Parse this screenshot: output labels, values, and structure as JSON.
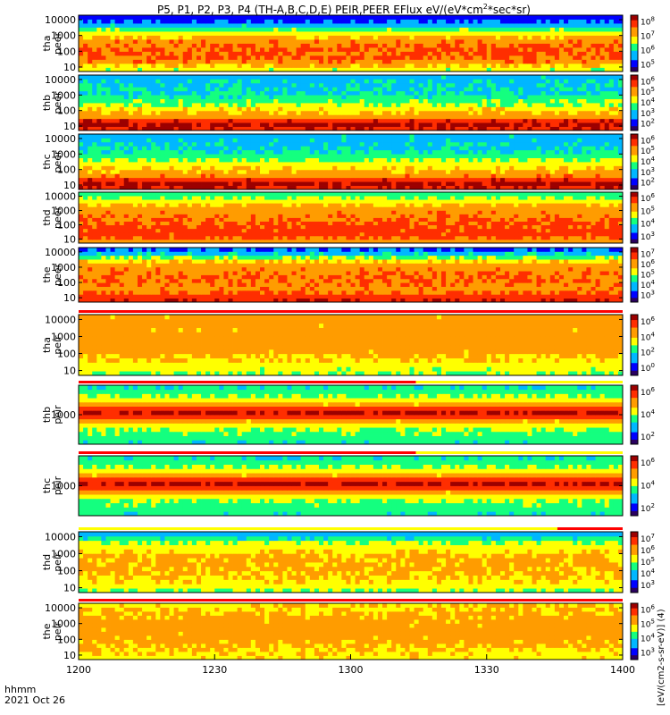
{
  "title": "P5, P1, P2, P3, P4 (TH-A,B,C,D,E) PEIR,PEER EFlux eV/(eV*cm",
  "title_sup": "2",
  "title_end": "*sec*sr)",
  "colorbar_label": "[eV/(cm2-s-sr-eV)] (4)",
  "time_axis": {
    "label_top": "hhmm",
    "label_bottom": "2021 Oct 26",
    "ticks": [
      "1200",
      "1230",
      "1300",
      "1330",
      "1400"
    ]
  },
  "palette": [
    "#2a0060",
    "#0000ff",
    "#00b7ff",
    "#14ff7f",
    "#ffff00",
    "#ff9c00",
    "#ff2e00",
    "#9c0000"
  ],
  "chart_data": [
    {
      "type": "heatmap",
      "panel": "tha-peer",
      "ylabel_line1": "tha",
      "ylabel_line2": "peer",
      "y_ticks": [
        "10",
        "100",
        "1000",
        "10000"
      ],
      "cb_labels": [
        "10^5",
        "10^6",
        "10^7",
        "10^8"
      ],
      "profile": [
        0.55,
        0.65,
        0.75,
        0.8,
        0.8,
        0.8,
        0.78,
        0.74,
        0.68,
        0.58,
        0.45,
        0.3,
        0.2,
        0.15
      ],
      "gaps": [],
      "flags": []
    },
    {
      "type": "heatmap",
      "panel": "thb-peer",
      "ylabel_line1": "thb",
      "ylabel_line2": "peer",
      "y_ticks": [
        "10",
        "100",
        "1000",
        "10000"
      ],
      "cb_labels": [
        "10^2",
        "10^3",
        "10^4",
        "10^5",
        "10^6"
      ],
      "profile": [
        0.92,
        0.96,
        0.88,
        0.72,
        0.66,
        0.6,
        0.52,
        0.46,
        0.4,
        0.35,
        0.34,
        0.33,
        0.32,
        0.3
      ],
      "gaps": [],
      "flags": []
    },
    {
      "type": "heatmap",
      "panel": "thc-peer",
      "ylabel_line1": "thc",
      "ylabel_line2": "peer",
      "y_ticks": [
        "10",
        "100",
        "1000",
        "10000"
      ],
      "cb_labels": [
        "10^2",
        "10^3",
        "10^4",
        "10^5",
        "10^6"
      ],
      "profile": [
        0.92,
        0.96,
        0.88,
        0.74,
        0.68,
        0.62,
        0.56,
        0.5,
        0.44,
        0.38,
        0.34,
        0.32,
        0.31,
        0.3
      ],
      "gaps": [],
      "flags": []
    },
    {
      "type": "heatmap",
      "panel": "thd-peer",
      "ylabel_line1": "thd",
      "ylabel_line2": "peer",
      "y_ticks": [
        "10",
        "100",
        "1000",
        "10000"
      ],
      "cb_labels": [
        "10^3",
        "10^4",
        "10^5",
        "10^6"
      ],
      "profile": [
        0.72,
        0.8,
        0.84,
        0.84,
        0.82,
        0.8,
        0.78,
        0.76,
        0.74,
        0.72,
        0.66,
        0.58,
        0.5,
        0.44
      ],
      "gaps": [],
      "flags": []
    },
    {
      "type": "heatmap",
      "panel": "the-peer",
      "ylabel_line1": "the",
      "ylabel_line2": "peer",
      "y_ticks": [
        "10",
        "100",
        "1000",
        "10000"
      ],
      "cb_labels": [
        "10^3",
        "10^4",
        "10^5",
        "10^6",
        "10^7"
      ],
      "profile": [
        0.9,
        0.86,
        0.78,
        0.74,
        0.76,
        0.78,
        0.78,
        0.76,
        0.74,
        0.7,
        0.62,
        0.48,
        0.32,
        0.22
      ],
      "gaps": [],
      "flags": []
    },
    {
      "type": "heatmap",
      "panel": "tha-peir",
      "ylabel_line1": "tha",
      "ylabel_line2": "peir",
      "y_ticks": [
        "10",
        "100",
        "1000",
        "10000"
      ],
      "cb_labels": [
        "10^0",
        "10^2",
        "10^4",
        "10^6"
      ],
      "profile": [
        0.5,
        0.55,
        0.58,
        0.62,
        0.66,
        0.7,
        0.72,
        0.72,
        0.72,
        0.72,
        0.7,
        0.7,
        0.72,
        0.7
      ],
      "gaps": [],
      "flags": [
        {
          "color": "#ff0000",
          "from": 0,
          "to": 1
        }
      ]
    },
    {
      "type": "heatmap",
      "panel": "thb-peir",
      "ylabel_line1": "thb",
      "ylabel_line2": "peir",
      "y_ticks": [
        "1000"
      ],
      "cb_labels": [
        "10^2",
        "10^4",
        "10^6"
      ],
      "profile": [
        0.4,
        0.42,
        0.45,
        0.5,
        0.58,
        0.7,
        0.86,
        0.96,
        0.86,
        0.7,
        0.58,
        0.5,
        0.42,
        0.38
      ],
      "gaps": [],
      "flags": [
        {
          "color": "#ff0000",
          "from": 0,
          "to": 0.62
        },
        {
          "color": "#ffff00",
          "from": 0.62,
          "to": 1
        }
      ]
    },
    {
      "type": "heatmap",
      "panel": "thc-peir",
      "ylabel_line1": "thc",
      "ylabel_line2": "peir",
      "y_ticks": [
        "1000"
      ],
      "cb_labels": [
        "10^2",
        "10^4",
        "10^6"
      ],
      "profile": [
        0.4,
        0.42,
        0.45,
        0.5,
        0.58,
        0.7,
        0.86,
        0.96,
        0.86,
        0.7,
        0.58,
        0.5,
        0.42,
        0.38
      ],
      "gaps": [],
      "flags": [
        {
          "color": "#ff0000",
          "from": 0,
          "to": 0.62
        },
        {
          "color": "#ffff00",
          "from": 0.62,
          "to": 1
        }
      ]
    },
    {
      "type": "heatmap",
      "panel": "thd-peir",
      "ylabel_line1": "thd",
      "ylabel_line2": "peir",
      "y_ticks": [
        "10",
        "100",
        "1000",
        "10000"
      ],
      "cb_labels": [
        "10^3",
        "10^4",
        "10^5",
        "10^6",
        "10^7"
      ],
      "profile": [
        0.5,
        0.56,
        0.6,
        0.64,
        0.66,
        0.68,
        0.68,
        0.68,
        0.66,
        0.62,
        0.58,
        0.52,
        0.4,
        0.28
      ],
      "gaps": [],
      "flags": [
        {
          "color": "#ffff00",
          "from": 0,
          "to": 0.88
        },
        {
          "color": "#ff0000",
          "from": 0.88,
          "to": 1
        }
      ]
    },
    {
      "type": "heatmap",
      "panel": "the-peir",
      "ylabel_line1": "the",
      "ylabel_line2": "peir",
      "y_ticks": [
        "10",
        "100",
        "1000",
        "10000"
      ],
      "cb_labels": [
        "10^3",
        "10^4",
        "10^5",
        "10^6"
      ],
      "profile": [
        0.6,
        0.62,
        0.64,
        0.66,
        0.68,
        0.7,
        0.7,
        0.7,
        0.7,
        0.7,
        0.68,
        0.66,
        0.64,
        0.62
      ],
      "gaps": [],
      "flags": [
        {
          "color": "#ff0000",
          "from": 0,
          "to": 1
        }
      ]
    }
  ]
}
